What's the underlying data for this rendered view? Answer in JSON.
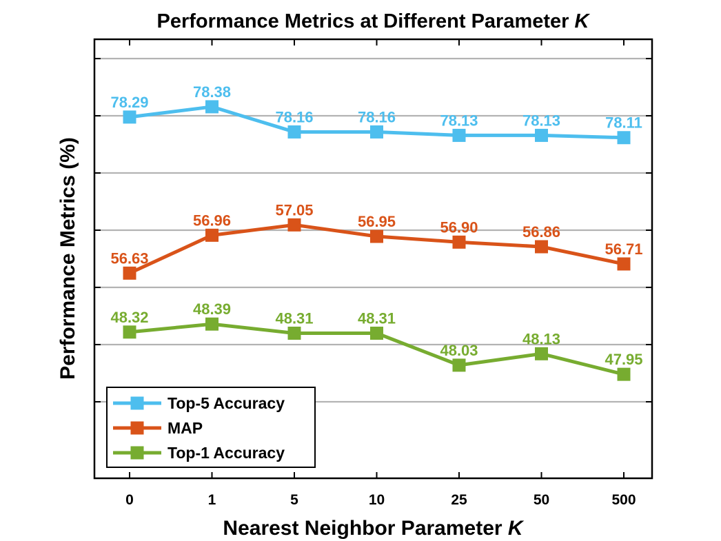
{
  "chart_data": {
    "type": "line",
    "title": "Performance Metrics at Different Parameter",
    "title_italic_suffix": "K",
    "xlabel": "Nearest Neighbor Parameter",
    "xlabel_italic_suffix": "K",
    "ylabel": "Performance Metrics (%)",
    "categories": [
      "0",
      "1",
      "5",
      "10",
      "25",
      "50",
      "500"
    ],
    "grid": "horizontal",
    "legend_position": "bottom-left",
    "series": [
      {
        "name": "Top-5 Accuracy",
        "color": "#4DBEEE",
        "values": [
          78.29,
          78.38,
          78.16,
          78.16,
          78.13,
          78.13,
          78.11
        ],
        "labels": [
          "78.29",
          "78.38",
          "78.16",
          "78.16",
          "78.13",
          "78.13",
          "78.11"
        ]
      },
      {
        "name": "MAP",
        "color": "#D95319",
        "values": [
          56.63,
          56.96,
          57.05,
          56.95,
          56.9,
          56.86,
          56.71
        ],
        "labels": [
          "56.63",
          "56.96",
          "57.05",
          "56.95",
          "56.90",
          "56.86",
          "56.71"
        ]
      },
      {
        "name": "Top-1 Accuracy",
        "color": "#77AC30",
        "values": [
          48.32,
          48.39,
          48.31,
          48.31,
          48.03,
          48.13,
          47.95
        ],
        "labels": [
          "48.32",
          "48.39",
          "48.31",
          "48.31",
          "48.03",
          "48.13",
          "47.95"
        ]
      }
    ]
  }
}
